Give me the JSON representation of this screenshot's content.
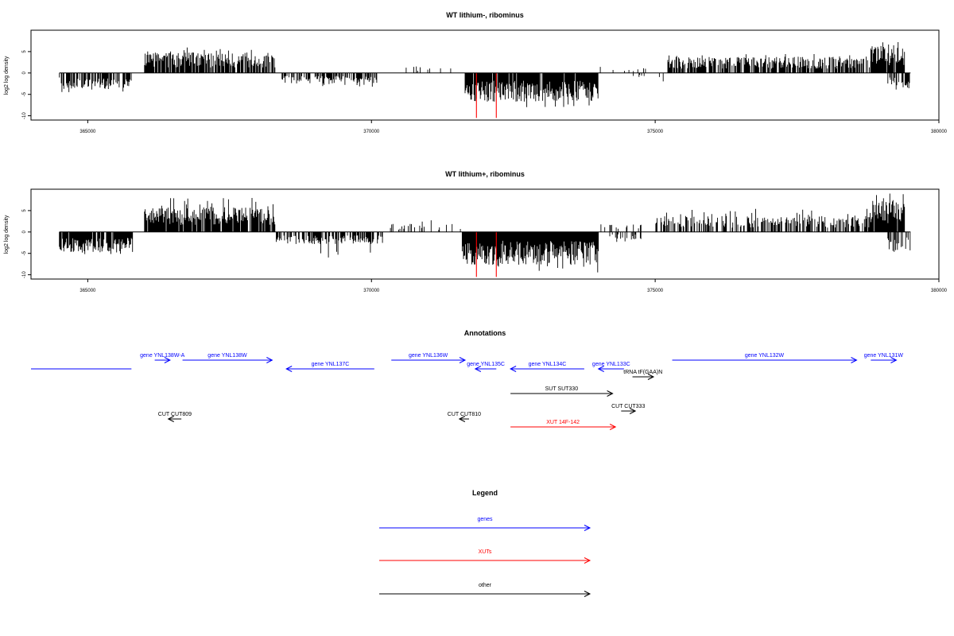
{
  "chart_data": [
    {
      "type": "bar",
      "title": "WT lithium-, ribominus",
      "ylabel": "log2 log density",
      "xlim": [
        364000,
        380000
      ],
      "ylim": [
        -11,
        10
      ],
      "xticks": [
        365000,
        370000,
        375000,
        380000
      ],
      "yticks": [
        -10,
        -5,
        0,
        5
      ],
      "x_range_data": [
        364500,
        379500
      ],
      "segments": [
        {
          "x0": 364500,
          "x1": 365800,
          "mean": -2.0,
          "max": 4.8,
          "density": 0.6,
          "strand": "minus"
        },
        {
          "x0": 366000,
          "x1": 368300,
          "mean": 2.5,
          "max": 6.0,
          "density": 0.8,
          "strand": "plus"
        },
        {
          "x0": 368400,
          "x1": 370100,
          "mean": -1.3,
          "max": 3.2,
          "density": 0.5,
          "strand": "minus"
        },
        {
          "x0": 370500,
          "x1": 371400,
          "mean": 0.8,
          "max": 2.0,
          "density": 0.08,
          "strand": "plus"
        },
        {
          "x0": 371650,
          "x1": 374000,
          "mean": -3.5,
          "max": 8.0,
          "density": 0.95,
          "strand": "minus"
        },
        {
          "x0": 374000,
          "x1": 374900,
          "mean": 0.8,
          "max": 3.0,
          "density": 0.15,
          "strand": "plus"
        },
        {
          "x0": 374200,
          "x1": 375200,
          "mean": -0.6,
          "max": 2.5,
          "density": 0.1,
          "strand": "minus"
        },
        {
          "x0": 375200,
          "x1": 378800,
          "mean": 2.0,
          "max": 4.5,
          "density": 0.7,
          "strand": "plus"
        },
        {
          "x0": 378800,
          "x1": 379400,
          "mean": 3.5,
          "max": 7.5,
          "density": 0.9,
          "strand": "plus"
        },
        {
          "x0": 379100,
          "x1": 379500,
          "mean": -1.8,
          "max": 4.0,
          "density": 0.5,
          "strand": "minus"
        }
      ],
      "highlight_bars": [
        {
          "x": 371850,
          "y": -10.5
        },
        {
          "x": 372200,
          "y": -10.5
        }
      ],
      "colors": {
        "bars": "#000000",
        "highlight": "#ff0000"
      }
    },
    {
      "type": "bar",
      "title": "WT lithium+, ribominus",
      "ylabel": "log2 log density",
      "xlim": [
        364000,
        380000
      ],
      "ylim": [
        -11,
        10
      ],
      "xticks": [
        365000,
        370000,
        375000,
        380000
      ],
      "yticks": [
        -10,
        -5,
        0,
        5
      ],
      "x_range_data": [
        364500,
        379500
      ],
      "segments": [
        {
          "x0": 364500,
          "x1": 365800,
          "mean": -2.5,
          "max": 5.5,
          "density": 0.9,
          "strand": "minus"
        },
        {
          "x0": 366000,
          "x1": 368300,
          "mean": 3.0,
          "max": 8.0,
          "density": 0.9,
          "strand": "plus"
        },
        {
          "x0": 368300,
          "x1": 370200,
          "mean": -1.5,
          "max": 6.0,
          "density": 0.6,
          "strand": "minus"
        },
        {
          "x0": 370300,
          "x1": 371600,
          "mean": 1.0,
          "max": 3.0,
          "density": 0.2,
          "strand": "plus"
        },
        {
          "x0": 371600,
          "x1": 374000,
          "mean": -4.0,
          "max": 9.5,
          "density": 1.0,
          "strand": "minus"
        },
        {
          "x0": 374000,
          "x1": 374800,
          "mean": 1.0,
          "max": 3.0,
          "density": 0.2,
          "strand": "plus"
        },
        {
          "x0": 374200,
          "x1": 374800,
          "mean": -1.0,
          "max": 3.0,
          "density": 0.3,
          "strand": "minus"
        },
        {
          "x0": 375000,
          "x1": 378800,
          "mean": 2.0,
          "max": 5.5,
          "density": 0.55,
          "strand": "plus"
        },
        {
          "x0": 378800,
          "x1": 379400,
          "mean": 4.0,
          "max": 9.0,
          "density": 0.95,
          "strand": "plus"
        },
        {
          "x0": 379100,
          "x1": 379500,
          "mean": -2.5,
          "max": 5.0,
          "density": 0.6,
          "strand": "minus"
        }
      ],
      "highlight_bars": [
        {
          "x": 371850,
          "y": -10.5
        },
        {
          "x": 372200,
          "y": -10.5
        }
      ],
      "colors": {
        "bars": "#000000",
        "highlight": "#ff0000"
      }
    }
  ],
  "annotations": {
    "title": "Annotations",
    "xlim": [
      364000,
      380000
    ],
    "features": [
      {
        "label": "",
        "x0": 364000,
        "x1": 365770,
        "row": 0,
        "strand": "none",
        "color": "#0000ff"
      },
      {
        "label": "gene YNL138W-A",
        "x0": 366180,
        "x1": 366450,
        "row": 0,
        "strand": "plus",
        "color": "#0000ff"
      },
      {
        "label": "gene YNL138W",
        "x0": 366670,
        "x1": 368250,
        "row": 0,
        "strand": "plus",
        "color": "#0000ff"
      },
      {
        "label": "gene YNL137C",
        "x0": 368500,
        "x1": 370050,
        "row": 0,
        "strand": "minus",
        "color": "#0000ff"
      },
      {
        "label": "gene YNL136W",
        "x0": 370350,
        "x1": 371650,
        "row": 0,
        "strand": "plus",
        "color": "#0000ff"
      },
      {
        "label": "gene YNL135C",
        "x0": 371830,
        "x1": 372200,
        "row": 0,
        "strand": "minus",
        "color": "#0000ff"
      },
      {
        "label": "gene YNL134C",
        "x0": 372450,
        "x1": 373750,
        "row": 0,
        "strand": "minus",
        "color": "#0000ff"
      },
      {
        "label": "gene YNL133C",
        "x0": 374000,
        "x1": 374450,
        "row": 0,
        "strand": "minus",
        "color": "#0000ff"
      },
      {
        "label": "tRNA tF(GAA)N",
        "x0": 374600,
        "x1": 374970,
        "row": 1,
        "strand": "plus",
        "color": "#000000"
      },
      {
        "label": "gene YNL132W",
        "x0": 375300,
        "x1": 378550,
        "row": 0,
        "strand": "plus",
        "color": "#0000ff"
      },
      {
        "label": "gene YNL131W",
        "x0": 378800,
        "x1": 379250,
        "row": 0,
        "strand": "plus",
        "color": "#0000ff"
      },
      {
        "label": "SUT SUT330",
        "x0": 372450,
        "x1": 374250,
        "row": 2,
        "strand": "plus",
        "color": "#000000"
      },
      {
        "label": "CUT CUT333",
        "x0": 374400,
        "x1": 374650,
        "row": 3,
        "strand": "plus",
        "color": "#000000"
      },
      {
        "label": "CUT CUT809",
        "x0": 366420,
        "x1": 366650,
        "row": 4,
        "strand": "minus",
        "color": "#000000"
      },
      {
        "label": "CUT CUT810",
        "x0": 371550,
        "x1": 371720,
        "row": 4,
        "strand": "minus",
        "color": "#000000"
      },
      {
        "label": "XUT 14F-142",
        "x0": 372450,
        "x1": 374300,
        "row": 5,
        "strand": "plus",
        "color": "#ff0000"
      }
    ]
  },
  "legend": {
    "title": "Legend",
    "items": [
      {
        "label": "genes",
        "color": "#0000ff"
      },
      {
        "label": "XUTs",
        "color": "#ff0000"
      },
      {
        "label": "other",
        "color": "#000000"
      }
    ]
  }
}
